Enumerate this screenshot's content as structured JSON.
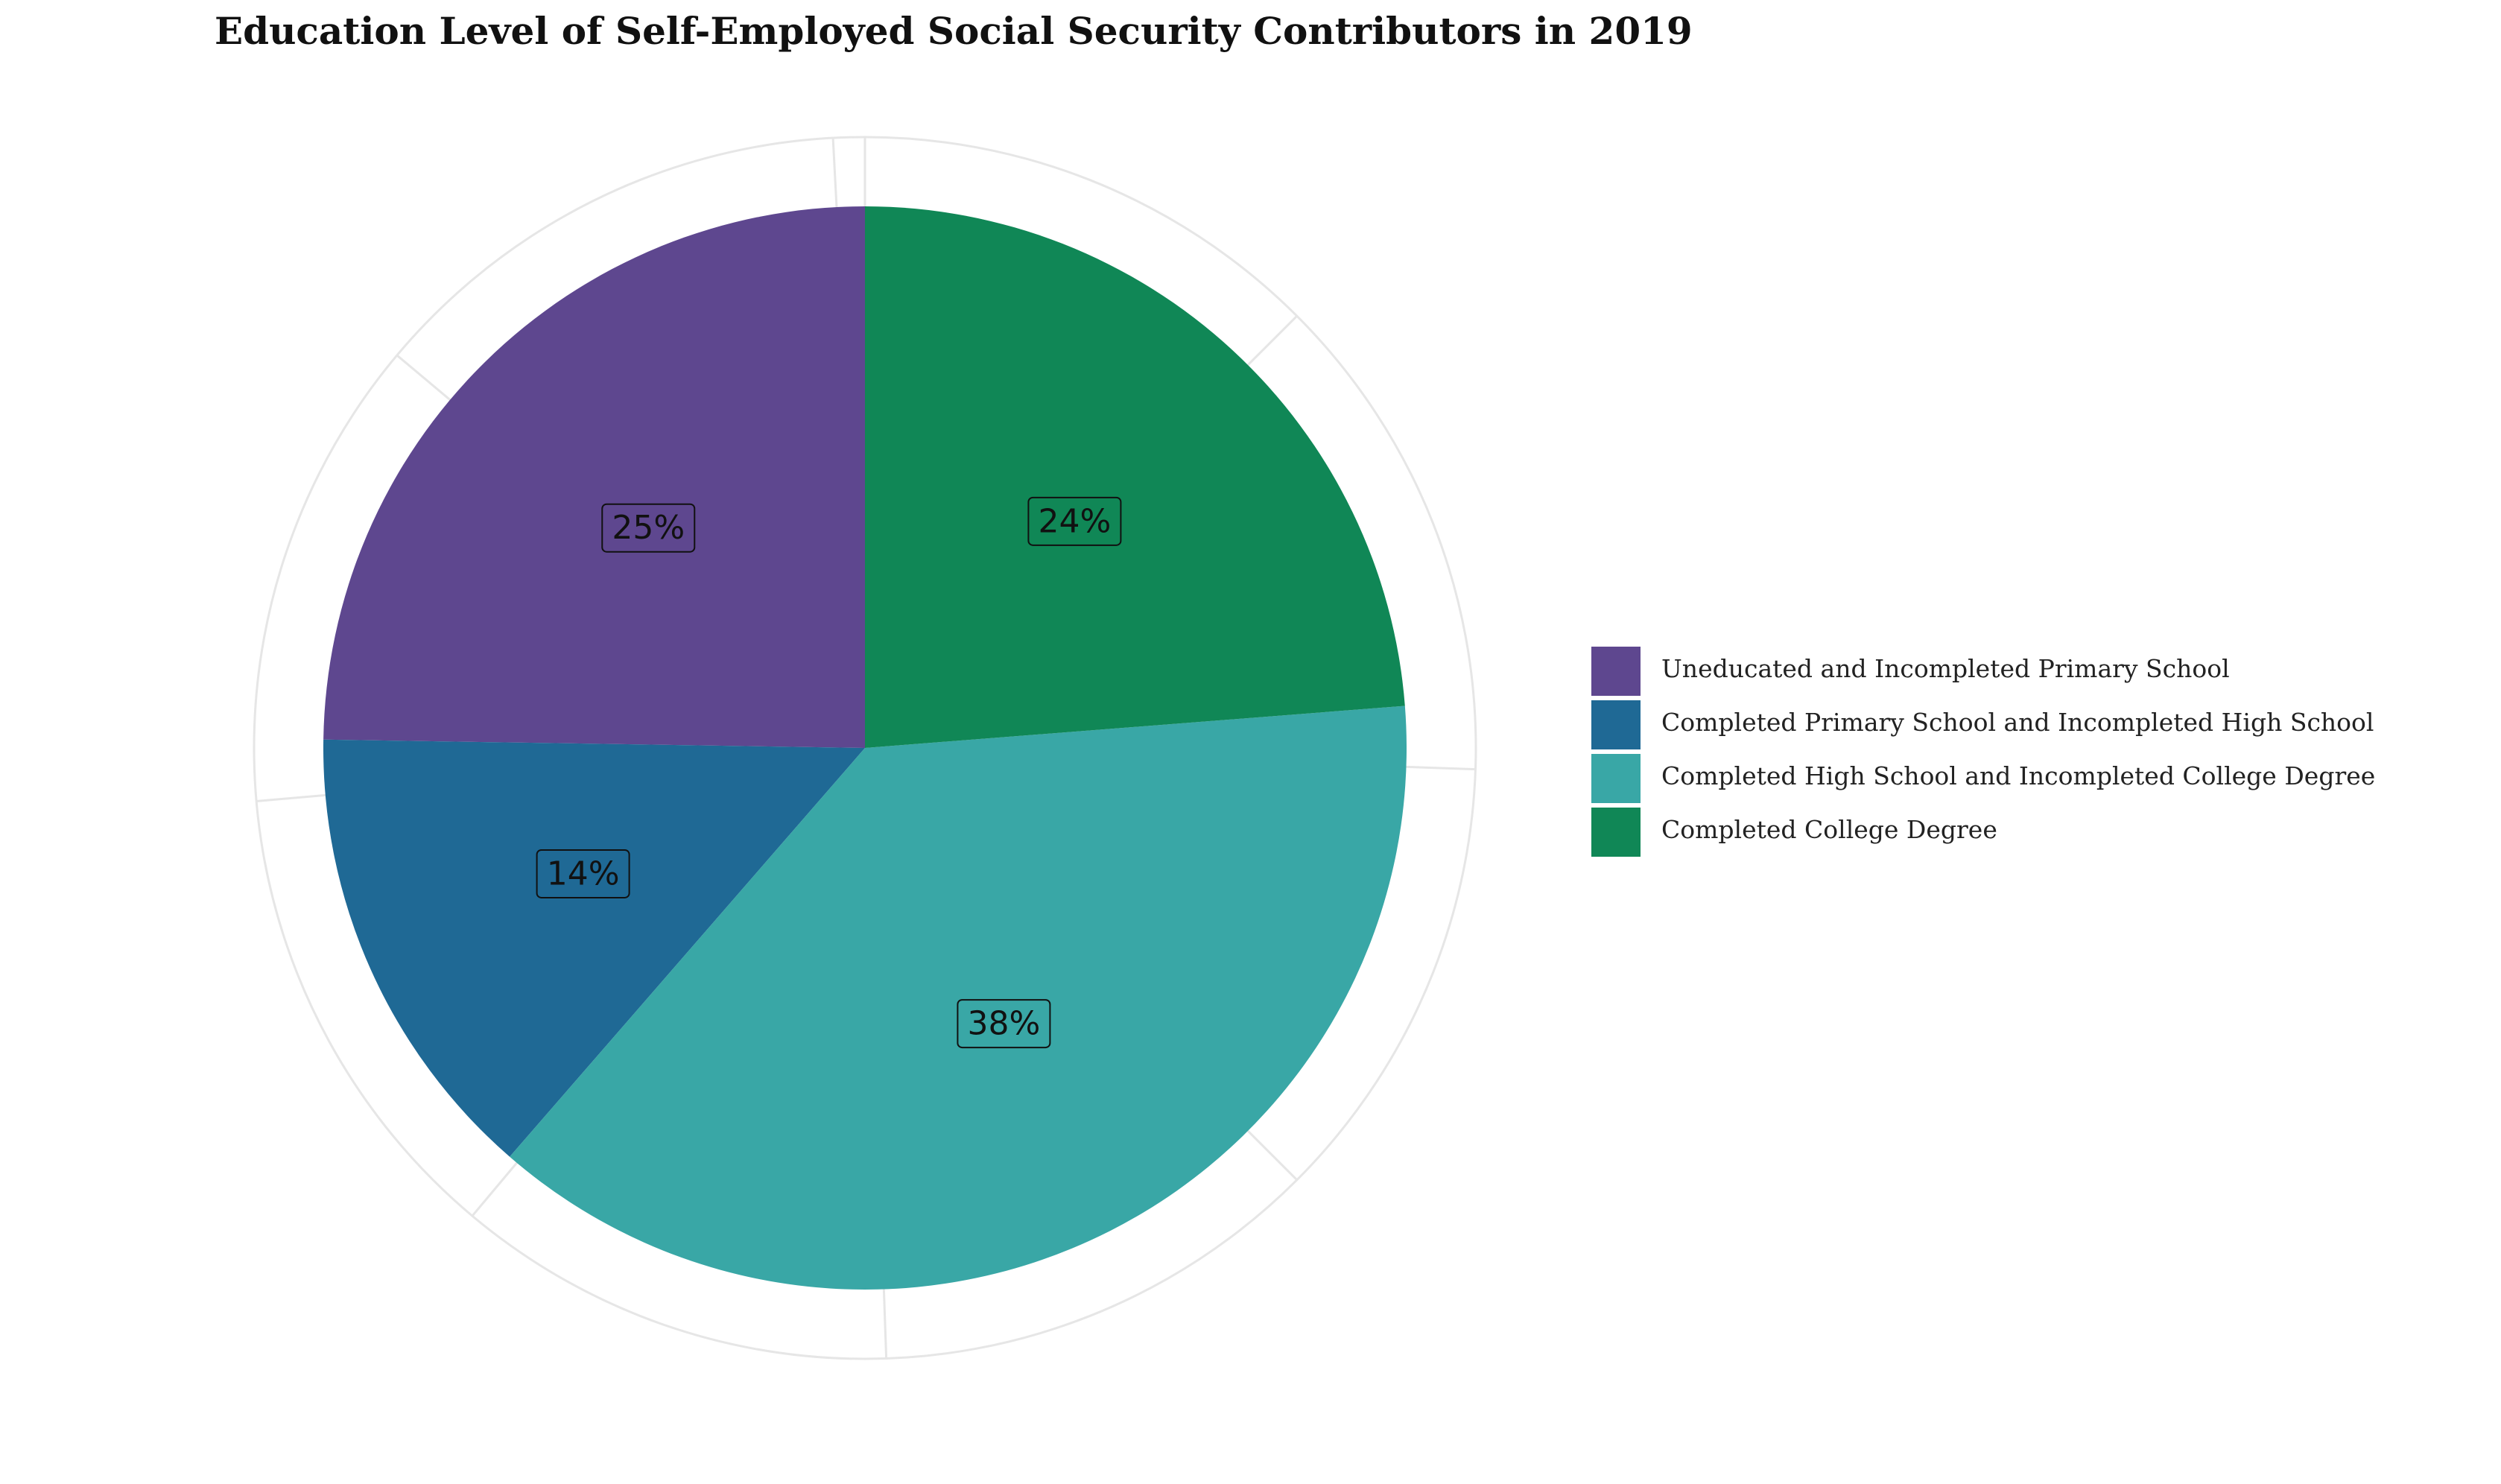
{
  "chart_data": {
    "type": "pie",
    "title": "Education Level of Self-Employed Social Security Contributors in 2019",
    "categories": [
      "Uneducated and Incompleted Primary School",
      "Completed Primary School and Incompleted High School",
      "Completed High School and Incompleted College Degree",
      "Completed College Degree"
    ],
    "values": [
      25,
      14,
      38,
      24
    ],
    "value_labels": [
      "25%",
      "14%",
      "38%",
      "24%"
    ],
    "colors": [
      "#5e478f",
      "#1f6995",
      "#39a7a6",
      "#108756"
    ],
    "legend_position": "right",
    "grid": true
  }
}
